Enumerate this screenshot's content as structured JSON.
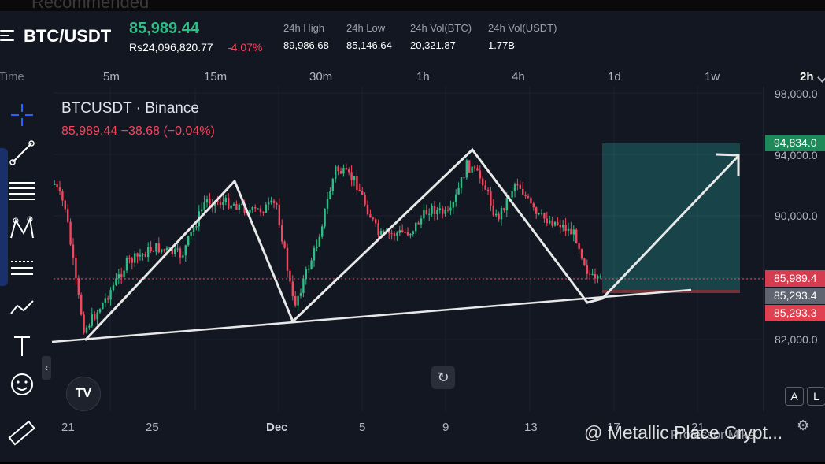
{
  "faded_header": {
    "text": "Recommended"
  },
  "header": {
    "pair": "BTC/USDT",
    "last_price": "85,989.44",
    "fiat_price": "Rs24,096,820.77",
    "change_pct": "-4.07%",
    "stats": [
      {
        "label": "24h High",
        "value": "89,986.68"
      },
      {
        "label": "24h Low",
        "value": "85,146.64"
      },
      {
        "label": "24h Vol(BTC)",
        "value": "20,321.87"
      },
      {
        "label": "24h Vol(USDT)",
        "value": "1.77B"
      }
    ]
  },
  "timeframes": {
    "time_label": "Time",
    "items": [
      "5m",
      "15m",
      "30m",
      "1h",
      "4h",
      "1d",
      "1w"
    ],
    "selected": "2h"
  },
  "chart_legend": {
    "symbol": "BTCUSDT · Binance",
    "values": "85,989.44  −38.68 (−0.04%)"
  },
  "price_axis": {
    "labels": [
      "98,000.0",
      "94,000.0",
      "90,000.0",
      "82,000.0"
    ]
  },
  "price_tags": {
    "target": "94,834.0",
    "last": "85,989.4",
    "entry": "85,293.4",
    "stop": "85,293.3"
  },
  "date_axis": {
    "labels": [
      "21",
      "25",
      "Dec",
      "5",
      "9",
      "13",
      "17",
      "21"
    ]
  },
  "buttons": {
    "logo": "TV",
    "reset": "↻",
    "auto": "A",
    "log": "L"
  },
  "icons": [
    "hamburger-icon",
    "crosshair-icon",
    "trendline-icon",
    "fib-icon",
    "pattern-icon",
    "forecast-icon",
    "arrow-path-icon",
    "text-icon",
    "emoji-icon",
    "ruler-icon",
    "gear-icon"
  ],
  "watermark": {
    "main": "@ Metallic Place Crypt...",
    "secondary": "Professor Mike..."
  },
  "colors": {
    "up": "#2ebd85",
    "down": "#f6465d",
    "bg": "#131722",
    "target_zone": "#26a69a"
  }
}
